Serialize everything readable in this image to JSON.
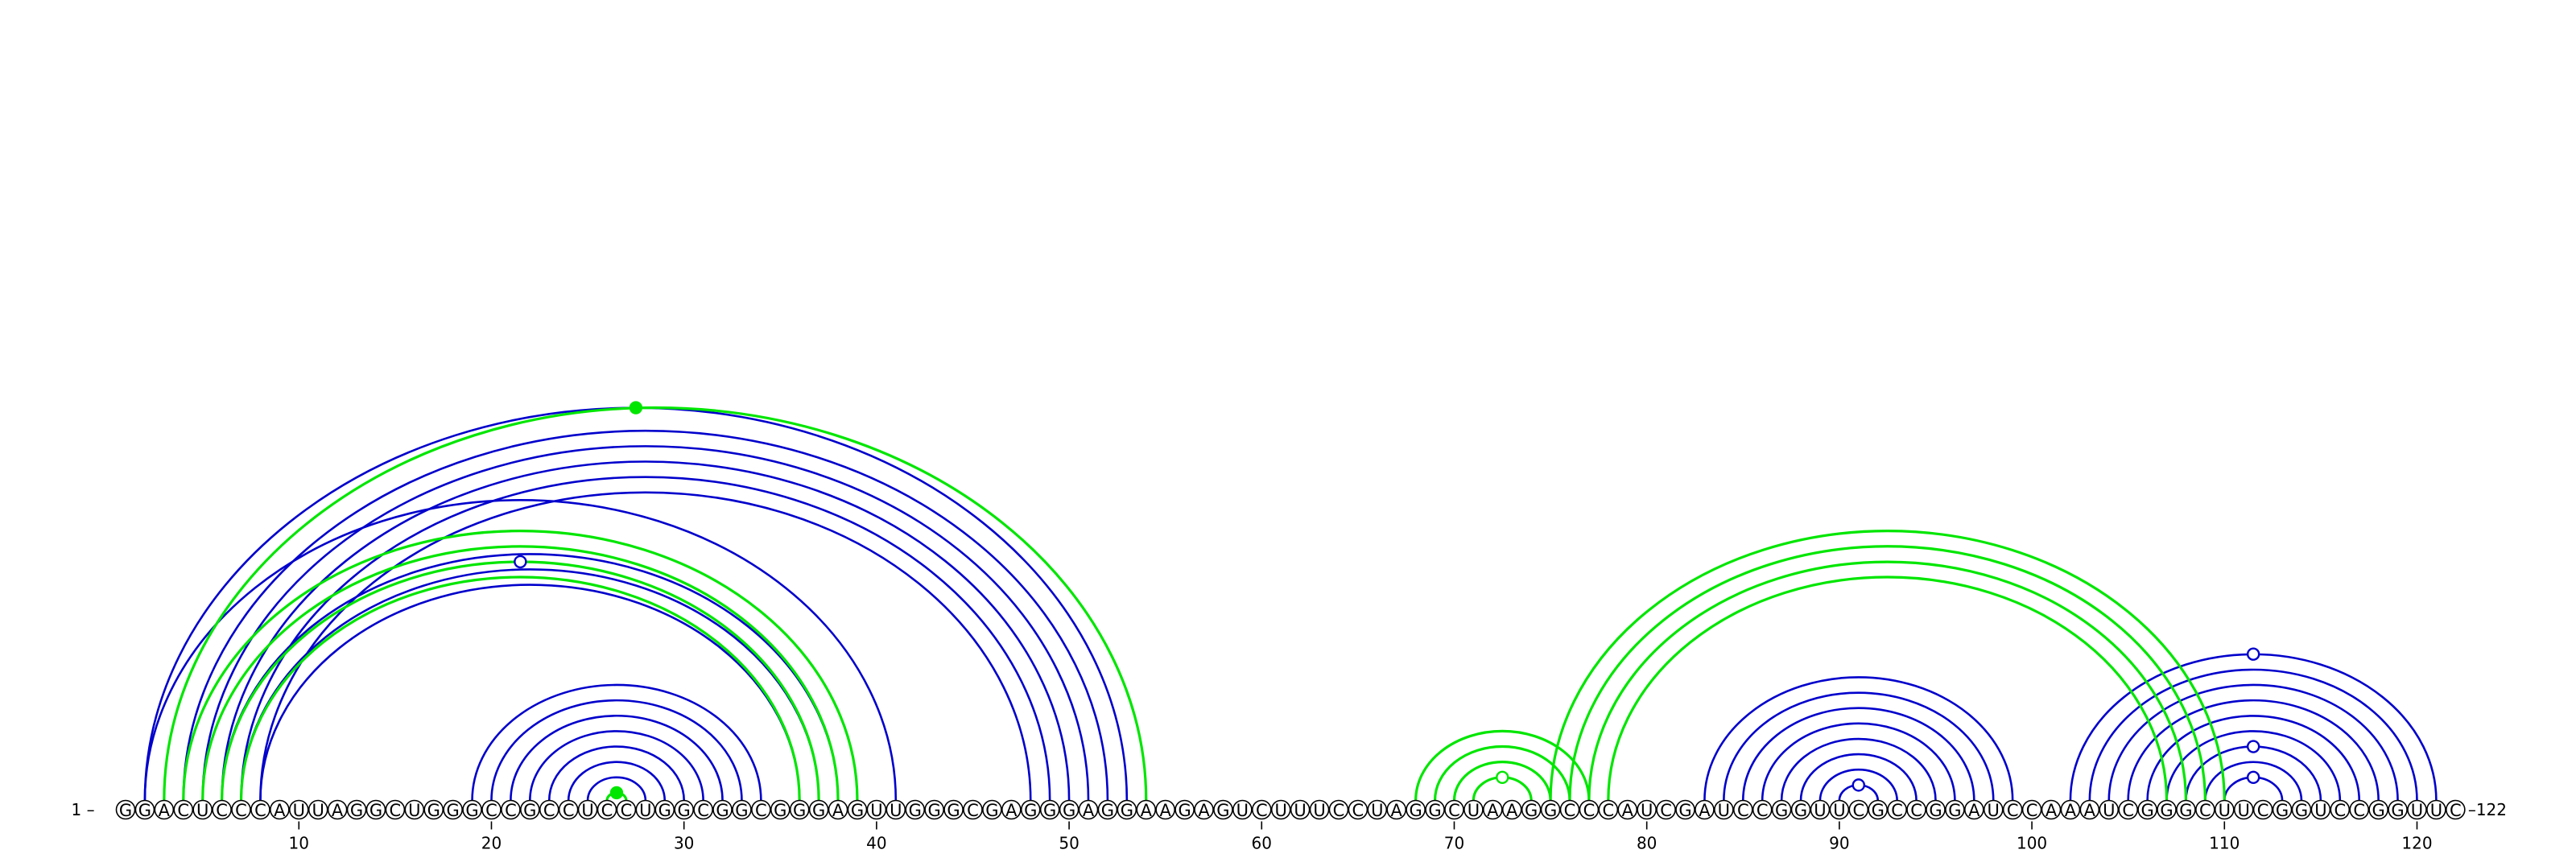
{
  "sequence": "GGACUCCCAUUAGGCUGGGCCGCCUCCUGGCGGCGGGAGUUGGGCGAGGGAGGAAGAGUCUUUCCUAGGCUAAGGCCCAUCGAUCCGGUUCGCCGGAUCCAAAUCGGGCUUCGGUCCGGUUC",
  "start_label": "1 –",
  "end_label": "–122",
  "colors": {
    "blue": "#0000cc",
    "green": "#00e600"
  },
  "ticks": [
    10,
    20,
    30,
    40,
    50,
    60,
    70,
    80,
    90,
    100,
    110,
    120
  ],
  "blue_arcs": [
    [
      2,
      53
    ],
    [
      4,
      52
    ],
    [
      5,
      51
    ],
    [
      6,
      50
    ],
    [
      7,
      49
    ],
    [
      8,
      48
    ],
    [
      2,
      41
    ],
    [
      4,
      39
    ],
    [
      6,
      38
    ],
    [
      7,
      37
    ],
    [
      8,
      36
    ],
    [
      19,
      34
    ],
    [
      20,
      33
    ],
    [
      21,
      32
    ],
    [
      22,
      31
    ],
    [
      23,
      30
    ],
    [
      24,
      29
    ],
    [
      25,
      28
    ],
    [
      83,
      99
    ],
    [
      84,
      98
    ],
    [
      85,
      97
    ],
    [
      86,
      96
    ],
    [
      87,
      95
    ],
    [
      88,
      94
    ],
    [
      89,
      93
    ],
    [
      90,
      92
    ],
    [
      102,
      121
    ],
    [
      103,
      120
    ],
    [
      104,
      119
    ],
    [
      105,
      118
    ],
    [
      106,
      117
    ],
    [
      107,
      116
    ],
    [
      108,
      115
    ],
    [
      109,
      114
    ],
    [
      110,
      113
    ]
  ],
  "green_arcs": [
    [
      3,
      54
    ],
    [
      4,
      39
    ],
    [
      5,
      38
    ],
    [
      6,
      37
    ],
    [
      7,
      36
    ],
    [
      26,
      27
    ],
    [
      68,
      77
    ],
    [
      69,
      76
    ],
    [
      70,
      75
    ],
    [
      71,
      74
    ],
    [
      75,
      110
    ],
    [
      76,
      109
    ],
    [
      77,
      108
    ],
    [
      78,
      107
    ]
  ],
  "markers": [
    {
      "arc": [
        2,
        53
      ],
      "color": "green",
      "filled": true
    },
    {
      "arc": [
        6,
        37
      ],
      "color": "blue",
      "filled": false
    },
    {
      "arc": [
        26,
        27
      ],
      "color": "green",
      "filled": true
    },
    {
      "arc": [
        71,
        74
      ],
      "color": "green",
      "filled": false
    },
    {
      "arc": [
        90,
        92
      ],
      "color": "blue",
      "filled": false
    },
    {
      "arc": [
        102,
        121
      ],
      "color": "blue",
      "filled": false
    },
    {
      "arc": [
        108,
        115
      ],
      "color": "blue",
      "filled": false
    },
    {
      "arc": [
        110,
        113
      ],
      "color": "blue",
      "filled": false
    }
  ]
}
